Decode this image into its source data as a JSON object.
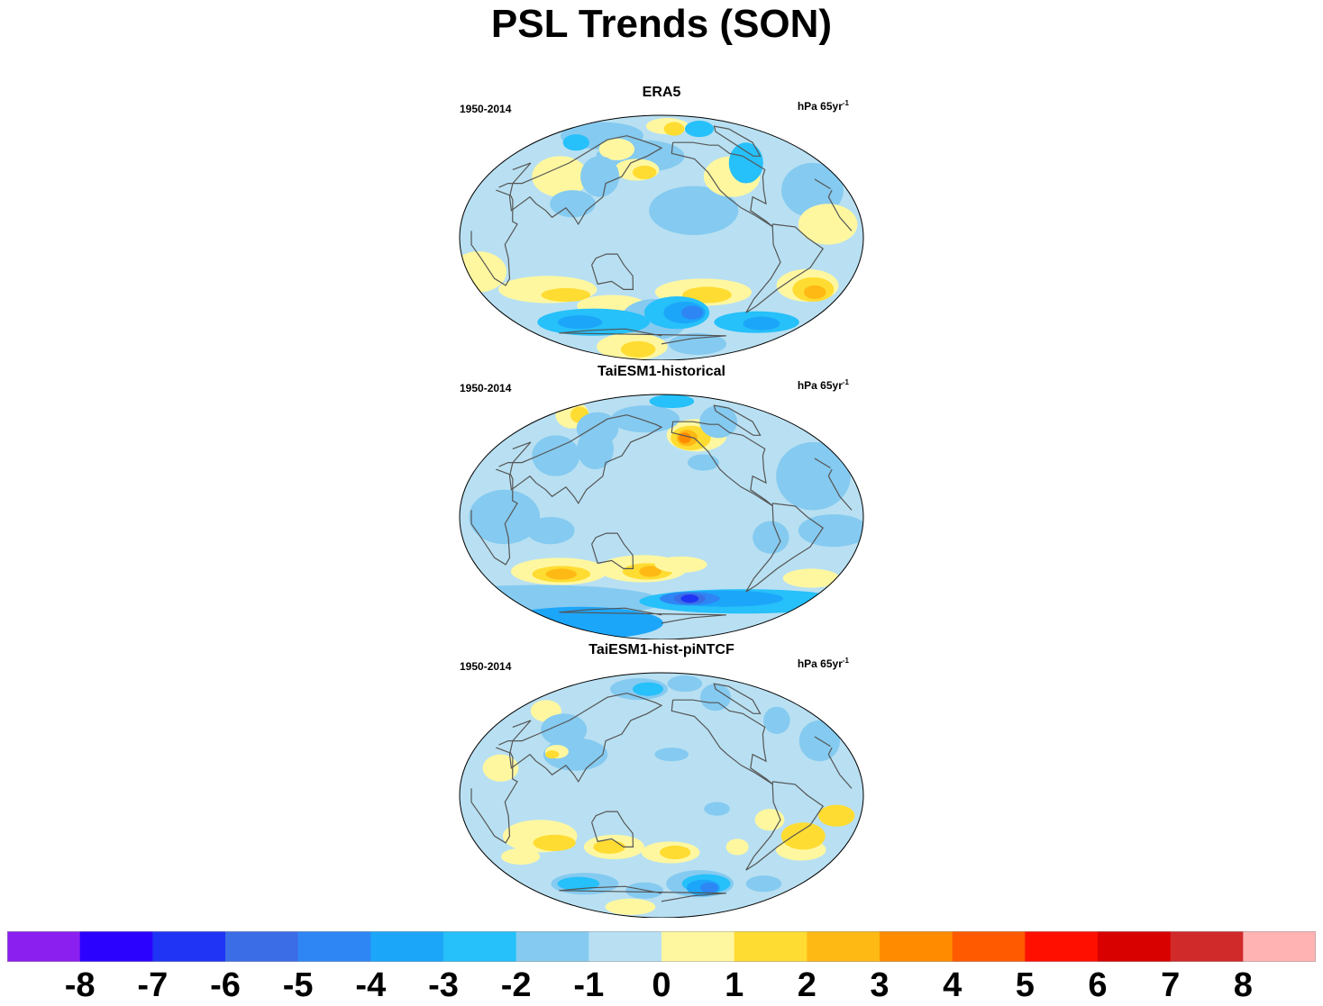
{
  "title": "PSL Trends (SON)",
  "panels": [
    {
      "title": "ERA5",
      "period": "1950-2014",
      "units_base": "hPa 65yr",
      "units_exp": "-1",
      "base_level": "0",
      "regions": [
        {
          "lon": -150,
          "lat": 20,
          "rx": 40,
          "ry": 18,
          "level": "-1"
        },
        {
          "lon": -100,
          "lat": 45,
          "rx": 30,
          "ry": 15,
          "level": "1"
        },
        {
          "lon": 150,
          "lat": 60,
          "rx": 60,
          "ry": 12,
          "level": "-1"
        },
        {
          "lon": 150,
          "lat": 50,
          "rx": 25,
          "ry": 8,
          "level": "1"
        },
        {
          "lon": 160,
          "lat": 48,
          "rx": 12,
          "ry": 5,
          "level": "2"
        },
        {
          "lon": -165,
          "lat": 82,
          "rx": 50,
          "ry": 6,
          "level": "1"
        },
        {
          "lon": -150,
          "lat": 80,
          "rx": 20,
          "ry": 5,
          "level": "2"
        },
        {
          "lon": -90,
          "lat": 80,
          "rx": 30,
          "ry": 6,
          "level": "-2"
        },
        {
          "lon": 60,
          "lat": 75,
          "rx": 80,
          "ry": 10,
          "level": "-1"
        },
        {
          "lon": 30,
          "lat": 70,
          "rx": 20,
          "ry": 6,
          "level": "-2"
        },
        {
          "lon": 110,
          "lat": 65,
          "rx": 25,
          "ry": 8,
          "level": "1"
        },
        {
          "lon": 65,
          "lat": 45,
          "rx": 30,
          "ry": 15,
          "level": "1"
        },
        {
          "lon": 95,
          "lat": 25,
          "rx": 20,
          "ry": 10,
          "level": "-1"
        },
        {
          "lon": 110,
          "lat": 45,
          "rx": 20,
          "ry": 15,
          "level": "-1"
        },
        {
          "lon": -25,
          "lat": 35,
          "rx": 30,
          "ry": 20,
          "level": "-1"
        },
        {
          "lon": -30,
          "lat": 10,
          "rx": 25,
          "ry": 15,
          "level": "1"
        },
        {
          "lon": -70,
          "lat": 55,
          "rx": 20,
          "ry": 15,
          "level": "-2"
        },
        {
          "lon": 5,
          "lat": -25,
          "rx": 25,
          "ry": 15,
          "level": "1"
        },
        {
          "lon": -135,
          "lat": -40,
          "rx": 50,
          "ry": 10,
          "level": "1"
        },
        {
          "lon": -130,
          "lat": -42,
          "rx": 25,
          "ry": 6,
          "level": "2"
        },
        {
          "lon": -30,
          "lat": -35,
          "rx": 30,
          "ry": 12,
          "level": "1"
        },
        {
          "lon": -20,
          "lat": -38,
          "rx": 20,
          "ry": 9,
          "level": "2"
        },
        {
          "lon": -15,
          "lat": -40,
          "rx": 10,
          "ry": 5,
          "level": "3"
        },
        {
          "lon": 60,
          "lat": -38,
          "rx": 50,
          "ry": 10,
          "level": "1"
        },
        {
          "lon": 75,
          "lat": -42,
          "rx": 25,
          "ry": 5,
          "level": "2"
        },
        {
          "lon": 120,
          "lat": -50,
          "rx": 40,
          "ry": 8,
          "level": "1"
        },
        {
          "lon": 170,
          "lat": -60,
          "rx": 45,
          "ry": 15,
          "level": "-1"
        },
        {
          "lon": -160,
          "lat": -55,
          "rx": 40,
          "ry": 12,
          "level": "-2"
        },
        {
          "lon": -150,
          "lat": -55,
          "rx": 25,
          "ry": 8,
          "level": "-3"
        },
        {
          "lon": -140,
          "lat": -55,
          "rx": 12,
          "ry": 5,
          "level": "-4"
        },
        {
          "lon": 80,
          "lat": -62,
          "rx": 80,
          "ry": 10,
          "level": "-2"
        },
        {
          "lon": 60,
          "lat": -62,
          "rx": 30,
          "ry": 5,
          "level": "-3"
        },
        {
          "lon": -40,
          "lat": -62,
          "rx": 60,
          "ry": 8,
          "level": "-2"
        },
        {
          "lon": -30,
          "lat": -63,
          "rx": 25,
          "ry": 5,
          "level": "-3"
        },
        {
          "lon": 110,
          "lat": -80,
          "rx": 80,
          "ry": 10,
          "level": "1"
        },
        {
          "lon": 120,
          "lat": -82,
          "rx": 40,
          "ry": 6,
          "level": "2"
        },
        {
          "lon": -100,
          "lat": -78,
          "rx": 60,
          "ry": 8,
          "level": "-1"
        }
      ]
    },
    {
      "title": "TaiESM1-historical",
      "period": "1950-2014",
      "units_base": "hPa 65yr",
      "units_exp": "-1",
      "base_level": "0",
      "regions": [
        {
          "lon": -130,
          "lat": 60,
          "rx": 40,
          "ry": 12,
          "level": "1"
        },
        {
          "lon": -140,
          "lat": 58,
          "rx": 25,
          "ry": 9,
          "level": "2"
        },
        {
          "lon": -145,
          "lat": 58,
          "rx": 12,
          "ry": 6,
          "level": "3"
        },
        {
          "lon": -148,
          "lat": 58,
          "rx": 6,
          "ry": 4,
          "level": "4"
        },
        {
          "lon": -135,
          "lat": 40,
          "rx": 15,
          "ry": 6,
          "level": "-1"
        },
        {
          "lon": 150,
          "lat": 72,
          "rx": 60,
          "ry": 10,
          "level": "-1"
        },
        {
          "lon": -150,
          "lat": 85,
          "rx": 60,
          "ry": 5,
          "level": "-2"
        },
        {
          "lon": -80,
          "lat": 70,
          "rx": 30,
          "ry": 12,
          "level": "-1"
        },
        {
          "lon": 0,
          "lat": 75,
          "rx": 30,
          "ry": 10,
          "level": "1"
        },
        {
          "lon": 15,
          "lat": 75,
          "rx": 15,
          "ry": 6,
          "level": "2"
        },
        {
          "lon": 80,
          "lat": 65,
          "rx": 30,
          "ry": 12,
          "level": "-1"
        },
        {
          "lon": 60,
          "lat": 45,
          "rx": 25,
          "ry": 15,
          "level": "-1"
        },
        {
          "lon": 100,
          "lat": 50,
          "rx": 20,
          "ry": 15,
          "level": "-1"
        },
        {
          "lon": -30,
          "lat": 30,
          "rx": 35,
          "ry": 25,
          "level": "-1"
        },
        {
          "lon": -25,
          "lat": -10,
          "rx": 30,
          "ry": 12,
          "level": "-1"
        },
        {
          "lon": 40,
          "lat": 0,
          "rx": 30,
          "ry": 20,
          "level": "-1"
        },
        {
          "lon": -80,
          "lat": -15,
          "rx": 15,
          "ry": 12,
          "level": "-1"
        },
        {
          "lon": 80,
          "lat": -10,
          "rx": 20,
          "ry": 10,
          "level": "-1"
        },
        {
          "lon": 70,
          "lat": -40,
          "rx": 50,
          "ry": 10,
          "level": "1"
        },
        {
          "lon": 70,
          "lat": -42,
          "rx": 30,
          "ry": 6,
          "level": "2"
        },
        {
          "lon": 70,
          "lat": -42,
          "rx": 15,
          "ry": 4,
          "level": "3"
        },
        {
          "lon": 160,
          "lat": -38,
          "rx": 45,
          "ry": 10,
          "level": "1"
        },
        {
          "lon": 165,
          "lat": -40,
          "rx": 25,
          "ry": 6,
          "level": "2"
        },
        {
          "lon": 168,
          "lat": -40,
          "rx": 10,
          "ry": 4,
          "level": "3"
        },
        {
          "lon": -160,
          "lat": -35,
          "rx": 25,
          "ry": 6,
          "level": "1"
        },
        {
          "lon": -10,
          "lat": -45,
          "rx": 30,
          "ry": 7,
          "level": "1"
        },
        {
          "lon": 0,
          "lat": -62,
          "rx": 180,
          "ry": 12,
          "level": "-1"
        },
        {
          "lon": -60,
          "lat": -62,
          "rx": 150,
          "ry": 9,
          "level": "-2"
        },
        {
          "lon": -90,
          "lat": -60,
          "rx": 80,
          "ry": 6,
          "level": "-3"
        },
        {
          "lon": -140,
          "lat": -60,
          "rx": 40,
          "ry": 5,
          "level": "-4"
        },
        {
          "lon": -140,
          "lat": -60,
          "rx": 20,
          "ry": 4,
          "level": "-5"
        },
        {
          "lon": -140,
          "lat": -60,
          "rx": 10,
          "ry": 3,
          "level": "-6"
        },
        {
          "lon": 0,
          "lat": -78,
          "rx": 180,
          "ry": 12,
          "level": "-3"
        }
      ]
    },
    {
      "title": "TaiESM1-hist-piNTCF",
      "period": "1950-2014",
      "units_base": "hPa 65yr",
      "units_exp": "-1",
      "base_level": "0",
      "regions": [
        {
          "lon": 130,
          "lat": 78,
          "rx": 60,
          "ry": 8,
          "level": "-1"
        },
        {
          "lon": 150,
          "lat": 78,
          "rx": 30,
          "ry": 5,
          "level": "-2"
        },
        {
          "lon": -120,
          "lat": 82,
          "rx": 40,
          "ry": 6,
          "level": "-1"
        },
        {
          "lon": -80,
          "lat": 72,
          "rx": 25,
          "ry": 10,
          "level": "-1"
        },
        {
          "lon": -30,
          "lat": 55,
          "rx": 15,
          "ry": 10,
          "level": "-1"
        },
        {
          "lon": 10,
          "lat": 62,
          "rx": 20,
          "ry": 8,
          "level": "1"
        },
        {
          "lon": 65,
          "lat": 48,
          "rx": 25,
          "ry": 12,
          "level": "-1"
        },
        {
          "lon": 95,
          "lat": 30,
          "rx": 30,
          "ry": 12,
          "level": "-1"
        },
        {
          "lon": 75,
          "lat": 32,
          "rx": 10,
          "ry": 5,
          "level": "1"
        },
        {
          "lon": 72,
          "lat": 30,
          "rx": 5,
          "ry": 3,
          "level": "2"
        },
        {
          "lon": -170,
          "lat": 30,
          "rx": 15,
          "ry": 5,
          "level": "-1"
        },
        {
          "lon": -10,
          "lat": 40,
          "rx": 20,
          "ry": 15,
          "level": "-1"
        },
        {
          "lon": 30,
          "lat": 20,
          "rx": 15,
          "ry": 10,
          "level": "1"
        },
        {
          "lon": 60,
          "lat": -30,
          "rx": 35,
          "ry": 12,
          "level": "1"
        },
        {
          "lon": 70,
          "lat": -35,
          "rx": 20,
          "ry": 6,
          "level": "2"
        },
        {
          "lon": 130,
          "lat": -38,
          "rx": 30,
          "ry": 9,
          "level": "1"
        },
        {
          "lon": 125,
          "lat": -38,
          "rx": 15,
          "ry": 5,
          "level": "2"
        },
        {
          "lon": -170,
          "lat": -42,
          "rx": 30,
          "ry": 8,
          "level": "1"
        },
        {
          "lon": -165,
          "lat": -42,
          "rx": 15,
          "ry": 5,
          "level": "2"
        },
        {
          "lon": -80,
          "lat": -18,
          "rx": 12,
          "ry": 8,
          "level": "1"
        },
        {
          "lon": -100,
          "lat": -38,
          "rx": 10,
          "ry": 6,
          "level": "1"
        },
        {
          "lon": -130,
          "lat": -10,
          "rx": 10,
          "ry": 5,
          "level": "-1"
        },
        {
          "lon": -30,
          "lat": -40,
          "rx": 25,
          "ry": 8,
          "level": "1"
        },
        {
          "lon": -40,
          "lat": -30,
          "rx": 20,
          "ry": 10,
          "level": "2"
        },
        {
          "lon": -20,
          "lat": -15,
          "rx": 15,
          "ry": 8,
          "level": "2"
        },
        {
          "lon": 20,
          "lat": -45,
          "rx": 20,
          "ry": 6,
          "level": "1"
        },
        {
          "lon": -120,
          "lat": -65,
          "rx": 50,
          "ry": 10,
          "level": "-1"
        },
        {
          "lon": -110,
          "lat": -65,
          "rx": 35,
          "ry": 7,
          "level": "-2"
        },
        {
          "lon": -110,
          "lat": -68,
          "rx": 25,
          "ry": 6,
          "level": "-3"
        },
        {
          "lon": -100,
          "lat": -68,
          "rx": 12,
          "ry": 4,
          "level": "-4"
        },
        {
          "lon": 60,
          "lat": -65,
          "rx": 50,
          "ry": 8,
          "level": "-1"
        },
        {
          "lon": 50,
          "lat": -65,
          "rx": 30,
          "ry": 5,
          "level": "-2"
        },
        {
          "lon": -20,
          "lat": -65,
          "rx": 25,
          "ry": 6,
          "level": "-1"
        },
        {
          "lon": 150,
          "lat": -70,
          "rx": 30,
          "ry": 6,
          "level": "-1"
        },
        {
          "lon": 100,
          "lat": -82,
          "rx": 60,
          "ry": 6,
          "level": "1"
        }
      ]
    }
  ],
  "colorbar": {
    "colors": [
      "#8b1ff0",
      "#2c02ff",
      "#1f34f5",
      "#3b6de6",
      "#2e86f5",
      "#1ca6fa",
      "#26c0fa",
      "#85caf0",
      "#b8e0f2",
      "#fff7a0",
      "#ffdc32",
      "#ffb914",
      "#ff8c00",
      "#ff5a00",
      "#ff0f00",
      "#d90000",
      "#d12a2a",
      "#ffb3b3"
    ],
    "labels": [
      "-8",
      "-7",
      "-6",
      "-5",
      "-4",
      "-3",
      "-2",
      "-1",
      "0",
      "1",
      "2",
      "3",
      "4",
      "5",
      "6",
      "7",
      "8"
    ],
    "level_colors": {
      "-7": "#2c02ff",
      "-6": "#1f34f5",
      "-5": "#3b6de6",
      "-4": "#2e86f5",
      "-3": "#1ca6fa",
      "-2": "#26c0fa",
      "-1": "#85caf0",
      "0": "#b8e0f2",
      "1": "#fff7a0",
      "2": "#ffdc32",
      "3": "#ffb914",
      "4": "#ff8c00",
      "5": "#ff5a00",
      "6": "#ff0f00",
      "7": "#d90000"
    }
  }
}
